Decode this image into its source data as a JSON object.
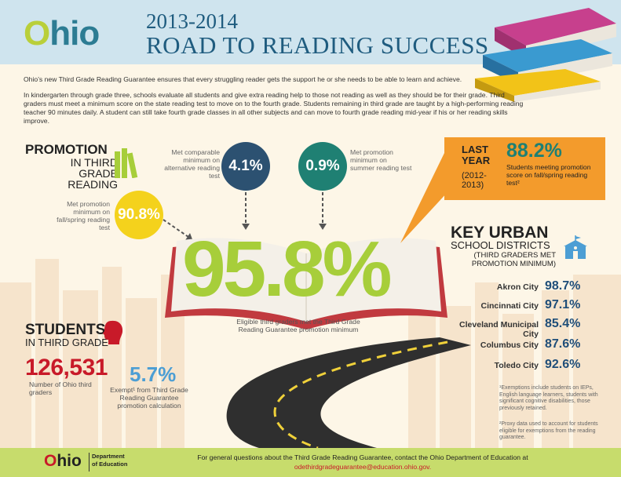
{
  "header": {
    "logo_o": "O",
    "logo_rest": "hio",
    "year": "2013-2014",
    "title": "ROAD TO READING SUCCESS"
  },
  "intro": {
    "p1": "Ohio’s new Third Grade Reading Guarantee ensures that every struggling reader gets the support he or she needs to be able to learn and achieve.",
    "p2": "In kindergarten through grade three, schools evaluate all students and give extra reading help to those not reading as well as they should be for their grade. Third graders must meet a minimum score on the state reading test to move on to the fourth grade. Students remaining in third grade are taught by a high-performing reading teacher 90 minutes daily. A student can still take fourth grade classes in all other subjects and can move to fourth grade reading mid-year if his or her reading skills improve."
  },
  "promotion": {
    "title": "PROMOTION",
    "subtitle": "IN THIRD GRADE READING",
    "alt": {
      "value": "4.1%",
      "caption": "Met comparable minimum on alternative reading test"
    },
    "summer": {
      "value": "0.9%",
      "caption": "Met promotion minimum on summer reading test"
    },
    "fall": {
      "value": "90.8%",
      "caption": "Met promotion minimum on fall/spring reading test"
    },
    "total": {
      "value": "95.8%",
      "caption": "Eligible third graders met the Third Grade Reading Guarantee promotion minimum"
    }
  },
  "last_year": {
    "label": "LAST YEAR",
    "years": "(2012-2013)",
    "value": "88.2%",
    "caption": "Students meeting promotion score on fall/spring reading test²"
  },
  "key_urban": {
    "title": "KEY URBAN",
    "subtitle": "SCHOOL DISTRICTS",
    "note": "(THIRD GRADERS MET PROMOTION MINIMUM)",
    "districts": [
      {
        "name": "Akron City",
        "value": "98.7%"
      },
      {
        "name": "Cincinnati City",
        "value": "97.1%"
      },
      {
        "name": "Cleveland Municipal City",
        "value": "85.4%"
      },
      {
        "name": "Columbus City",
        "value": "87.6%"
      },
      {
        "name": "Toledo City",
        "value": "92.6%"
      }
    ]
  },
  "students": {
    "title": "STUDENTS",
    "subtitle": "IN THIRD GRADE",
    "count": "126,531",
    "count_caption": "Number of Ohio third graders",
    "exempt": "5.7%",
    "exempt_caption": "Exempt¹ from Third Grade Reading Guarantee promotion calculation"
  },
  "footnotes": {
    "f1": "¹Exemptions include students on IEPs, English language learners, students with significant cognitive disabilities, those previously retained.",
    "f2": "²Proxy data used to account for students eligible for exemptions from the reading guarantee."
  },
  "footer": {
    "logo_o": "O",
    "logo_rest": "hio",
    "dept_line1": "Department",
    "dept_line2": "of Education",
    "text": "For general questions about the Third Grade Reading Guarantee, contact the Ohio Department of Education at",
    "email": "odethirdgradeguarantee@education.ohio.gov."
  },
  "colors": {
    "header_bg": "#cfe4ee",
    "title": "#1f5c7f",
    "accent_green": "#a7ce3a",
    "navy": "#2c5171",
    "teal": "#1f8073",
    "yellow": "#f4d21c",
    "orange": "#f39b2c",
    "red": "#c81a29",
    "blue": "#4c9ed4",
    "footer_bg": "#c7dc6c"
  }
}
